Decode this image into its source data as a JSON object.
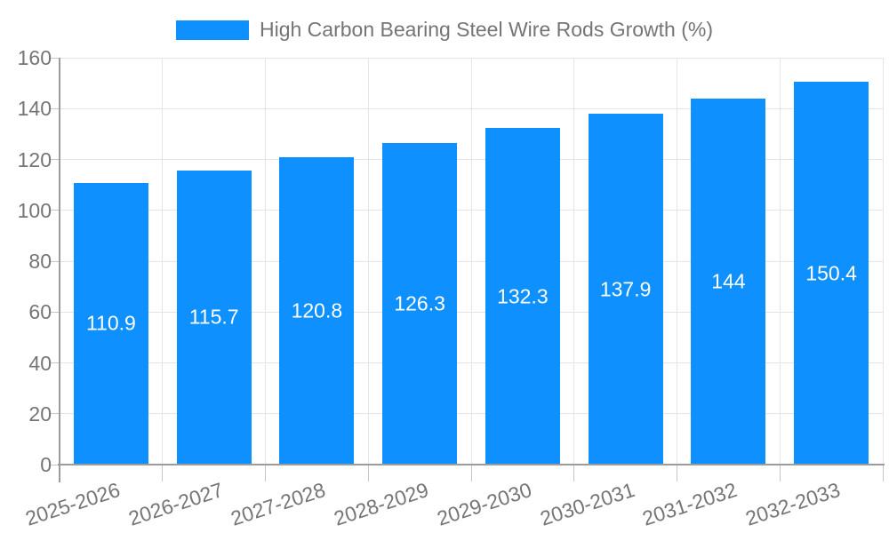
{
  "chart_data": {
    "type": "bar",
    "title": "High Carbon Bearing Steel Wire Rods Growth (%)",
    "categories": [
      "2025-2026",
      "2026-2027",
      "2027-2028",
      "2028-2029",
      "2029-2030",
      "2030-2031",
      "2031-2032",
      "2032-2033"
    ],
    "values": [
      110.9,
      115.7,
      120.8,
      126.3,
      132.3,
      137.9,
      144,
      150.4
    ],
    "value_labels": [
      "110.9",
      "115.7",
      "120.8",
      "126.3",
      "132.3",
      "137.9",
      "144",
      "150.4"
    ],
    "xlabel": "",
    "ylabel": "",
    "ylim": [
      0,
      160
    ],
    "y_tick_step": 20,
    "y_ticks": [
      0,
      20,
      40,
      60,
      80,
      100,
      120,
      140,
      160
    ],
    "grid": true,
    "legend_position": "top-center",
    "bar_color": "#0E90FF",
    "value_label_color": "#ffffff",
    "axis_label_color": "#757575"
  }
}
